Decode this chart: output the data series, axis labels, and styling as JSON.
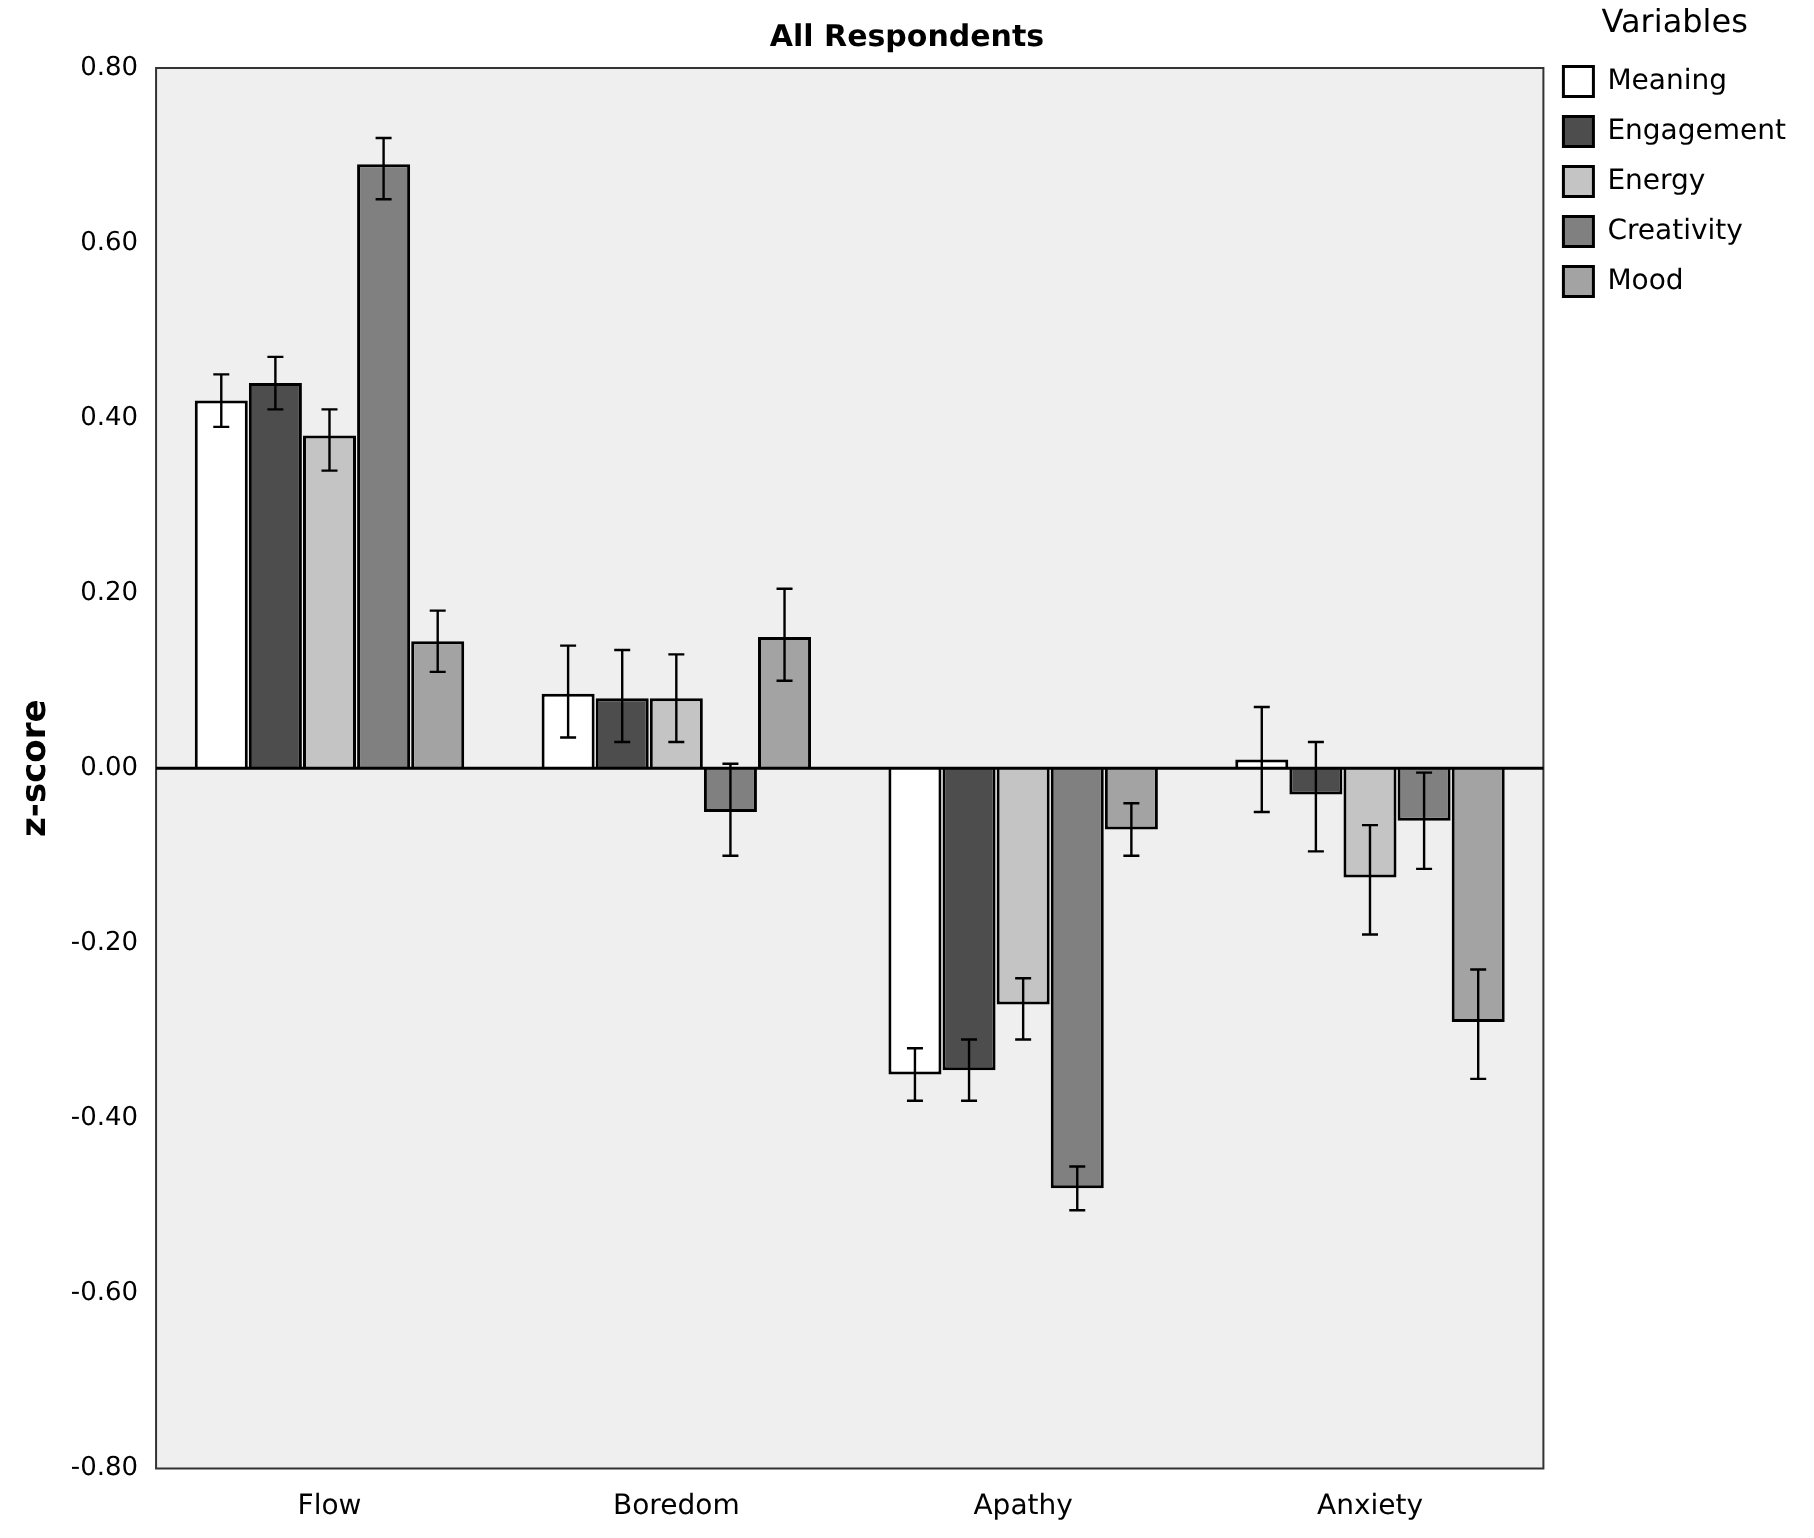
{
  "chart_data": {
    "type": "bar",
    "title": "All Respondents",
    "ylabel": "z-score",
    "legend_title": "Variables",
    "legend": "right",
    "categories": [
      "Flow",
      "Boredom",
      "Apathy",
      "Anxiety"
    ],
    "series": [
      {
        "name": "Meaning",
        "color": "#ffffff",
        "values": [
          0.42,
          0.085,
          -0.35,
          0.01
        ],
        "errors": [
          [
            0.39,
            0.45
          ],
          [
            0.035,
            0.14
          ],
          [
            -0.38,
            -0.32
          ],
          [
            -0.05,
            0.07
          ]
        ]
      },
      {
        "name": "Engagement",
        "color": "#4d4d4d",
        "values": [
          0.44,
          0.08,
          -0.345,
          -0.03
        ],
        "errors": [
          [
            0.41,
            0.47
          ],
          [
            0.03,
            0.135
          ],
          [
            -0.38,
            -0.31
          ],
          [
            -0.095,
            0.03
          ]
        ]
      },
      {
        "name": "Energy",
        "color": "#c4c4c4",
        "values": [
          0.38,
          0.08,
          -0.27,
          -0.125
        ],
        "errors": [
          [
            0.34,
            0.41
          ],
          [
            0.03,
            0.13
          ],
          [
            -0.31,
            -0.24
          ],
          [
            -0.19,
            -0.065
          ]
        ]
      },
      {
        "name": "Creativity",
        "color": "#808080",
        "values": [
          0.69,
          -0.05,
          -0.48,
          -0.06
        ],
        "errors": [
          [
            0.65,
            0.72
          ],
          [
            -0.1,
            0.005
          ],
          [
            -0.505,
            -0.455
          ],
          [
            -0.115,
            -0.005
          ]
        ]
      },
      {
        "name": "Mood",
        "color": "#a3a3a3",
        "values": [
          0.145,
          0.15,
          -0.07,
          -0.29
        ],
        "errors": [
          [
            0.11,
            0.18
          ],
          [
            0.1,
            0.205
          ],
          [
            -0.1,
            -0.04
          ],
          [
            -0.355,
            -0.23
          ]
        ]
      }
    ],
    "ylim": [
      -0.8,
      0.8
    ],
    "yticks": [
      {
        "value": -0.8,
        "label": "-0.80"
      },
      {
        "value": -0.6,
        "label": "-0.60"
      },
      {
        "value": -0.4,
        "label": "-0.40"
      },
      {
        "value": -0.2,
        "label": "-0.20"
      },
      {
        "value": 0,
        "label": "0.00"
      },
      {
        "value": 0.2,
        "label": "0.20"
      },
      {
        "value": 0.4,
        "label": "0.40"
      },
      {
        "value": 0.6,
        "label": "0.60"
      },
      {
        "value": 0.8,
        "label": "0.80"
      }
    ],
    "ref_lines": [
      {
        "axis": "y",
        "value": 0,
        "color": "#000000"
      }
    ],
    "grid": false
  }
}
